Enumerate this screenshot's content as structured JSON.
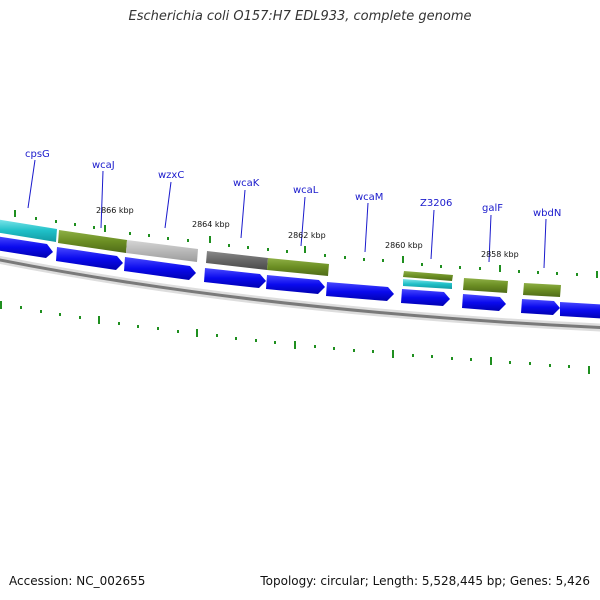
{
  "title": "Escherichia coli O157:H7 EDL933, complete genome",
  "footer": {
    "accession": "Accession: NC_002655",
    "summary": "Topology: circular; Length: 5,528,445 bp; Genes: 5,426"
  },
  "colors": {
    "cds_forward": "#0a0aee",
    "olive_feature": "#6b8e23",
    "cyan_feature": "#20c0c8",
    "gray_light": "#b8b8b8",
    "gray_dark": "#666666",
    "backbone": "#888888",
    "ticks": "#1f8f1f",
    "label": "#1a1acc"
  },
  "gene_labels": [
    "cpsG",
    "wcaJ",
    "wzxC",
    "wcaK",
    "wcaL",
    "wcaM",
    "Z3206",
    "galF",
    "wbdN"
  ],
  "scale_labels": [
    "2866 kbp",
    "2864 kbp",
    "2862 kbp",
    "2860 kbp",
    "2858 kbp"
  ]
}
